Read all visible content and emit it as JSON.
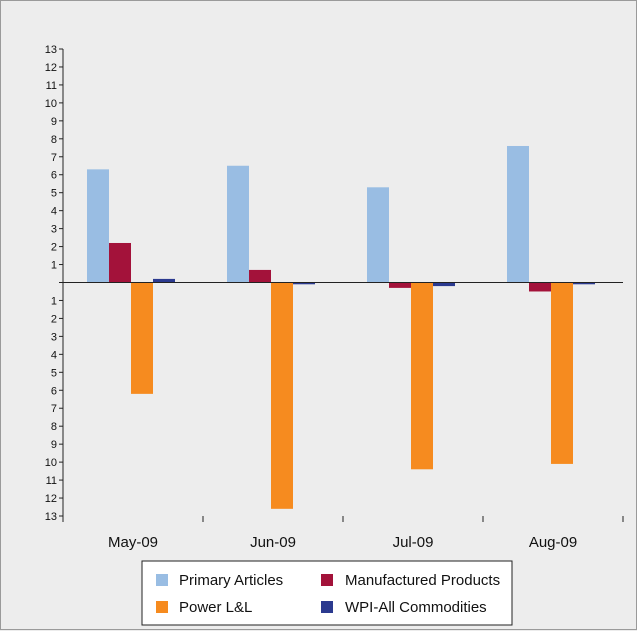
{
  "chart_data": {
    "type": "bar",
    "categories": [
      "May-09",
      "Jun-09",
      "Jul-09",
      "Aug-09"
    ],
    "series": [
      {
        "name": "Primary Articles",
        "color": "#99bde3",
        "values": [
          6.3,
          6.5,
          5.3,
          7.6
        ]
      },
      {
        "name": "Manufactured Products",
        "color": "#a3123a",
        "values": [
          2.2,
          0.7,
          -0.3,
          -0.5
        ]
      },
      {
        "name": "Power L&L",
        "color": "#f68b1f",
        "values": [
          -6.2,
          -12.6,
          -10.4,
          -10.1
        ]
      },
      {
        "name": "WPI-All Commodities",
        "color": "#2b3a8f",
        "values": [
          0.2,
          -0.1,
          -0.2,
          -0.1
        ]
      }
    ],
    "y_tick_labels": [
      "13",
      "12",
      "11",
      "10",
      "9",
      "8",
      "7",
      "6",
      "5",
      "4",
      "3",
      "2",
      "1",
      "",
      "1",
      "2",
      "3",
      "4",
      "5",
      "6",
      "7",
      "8",
      "9",
      "10",
      "11",
      "12",
      "13"
    ],
    "ylim": [
      -13,
      13
    ],
    "grid": false,
    "legend_position": "bottom",
    "title": "",
    "xlabel": "",
    "ylabel": ""
  }
}
